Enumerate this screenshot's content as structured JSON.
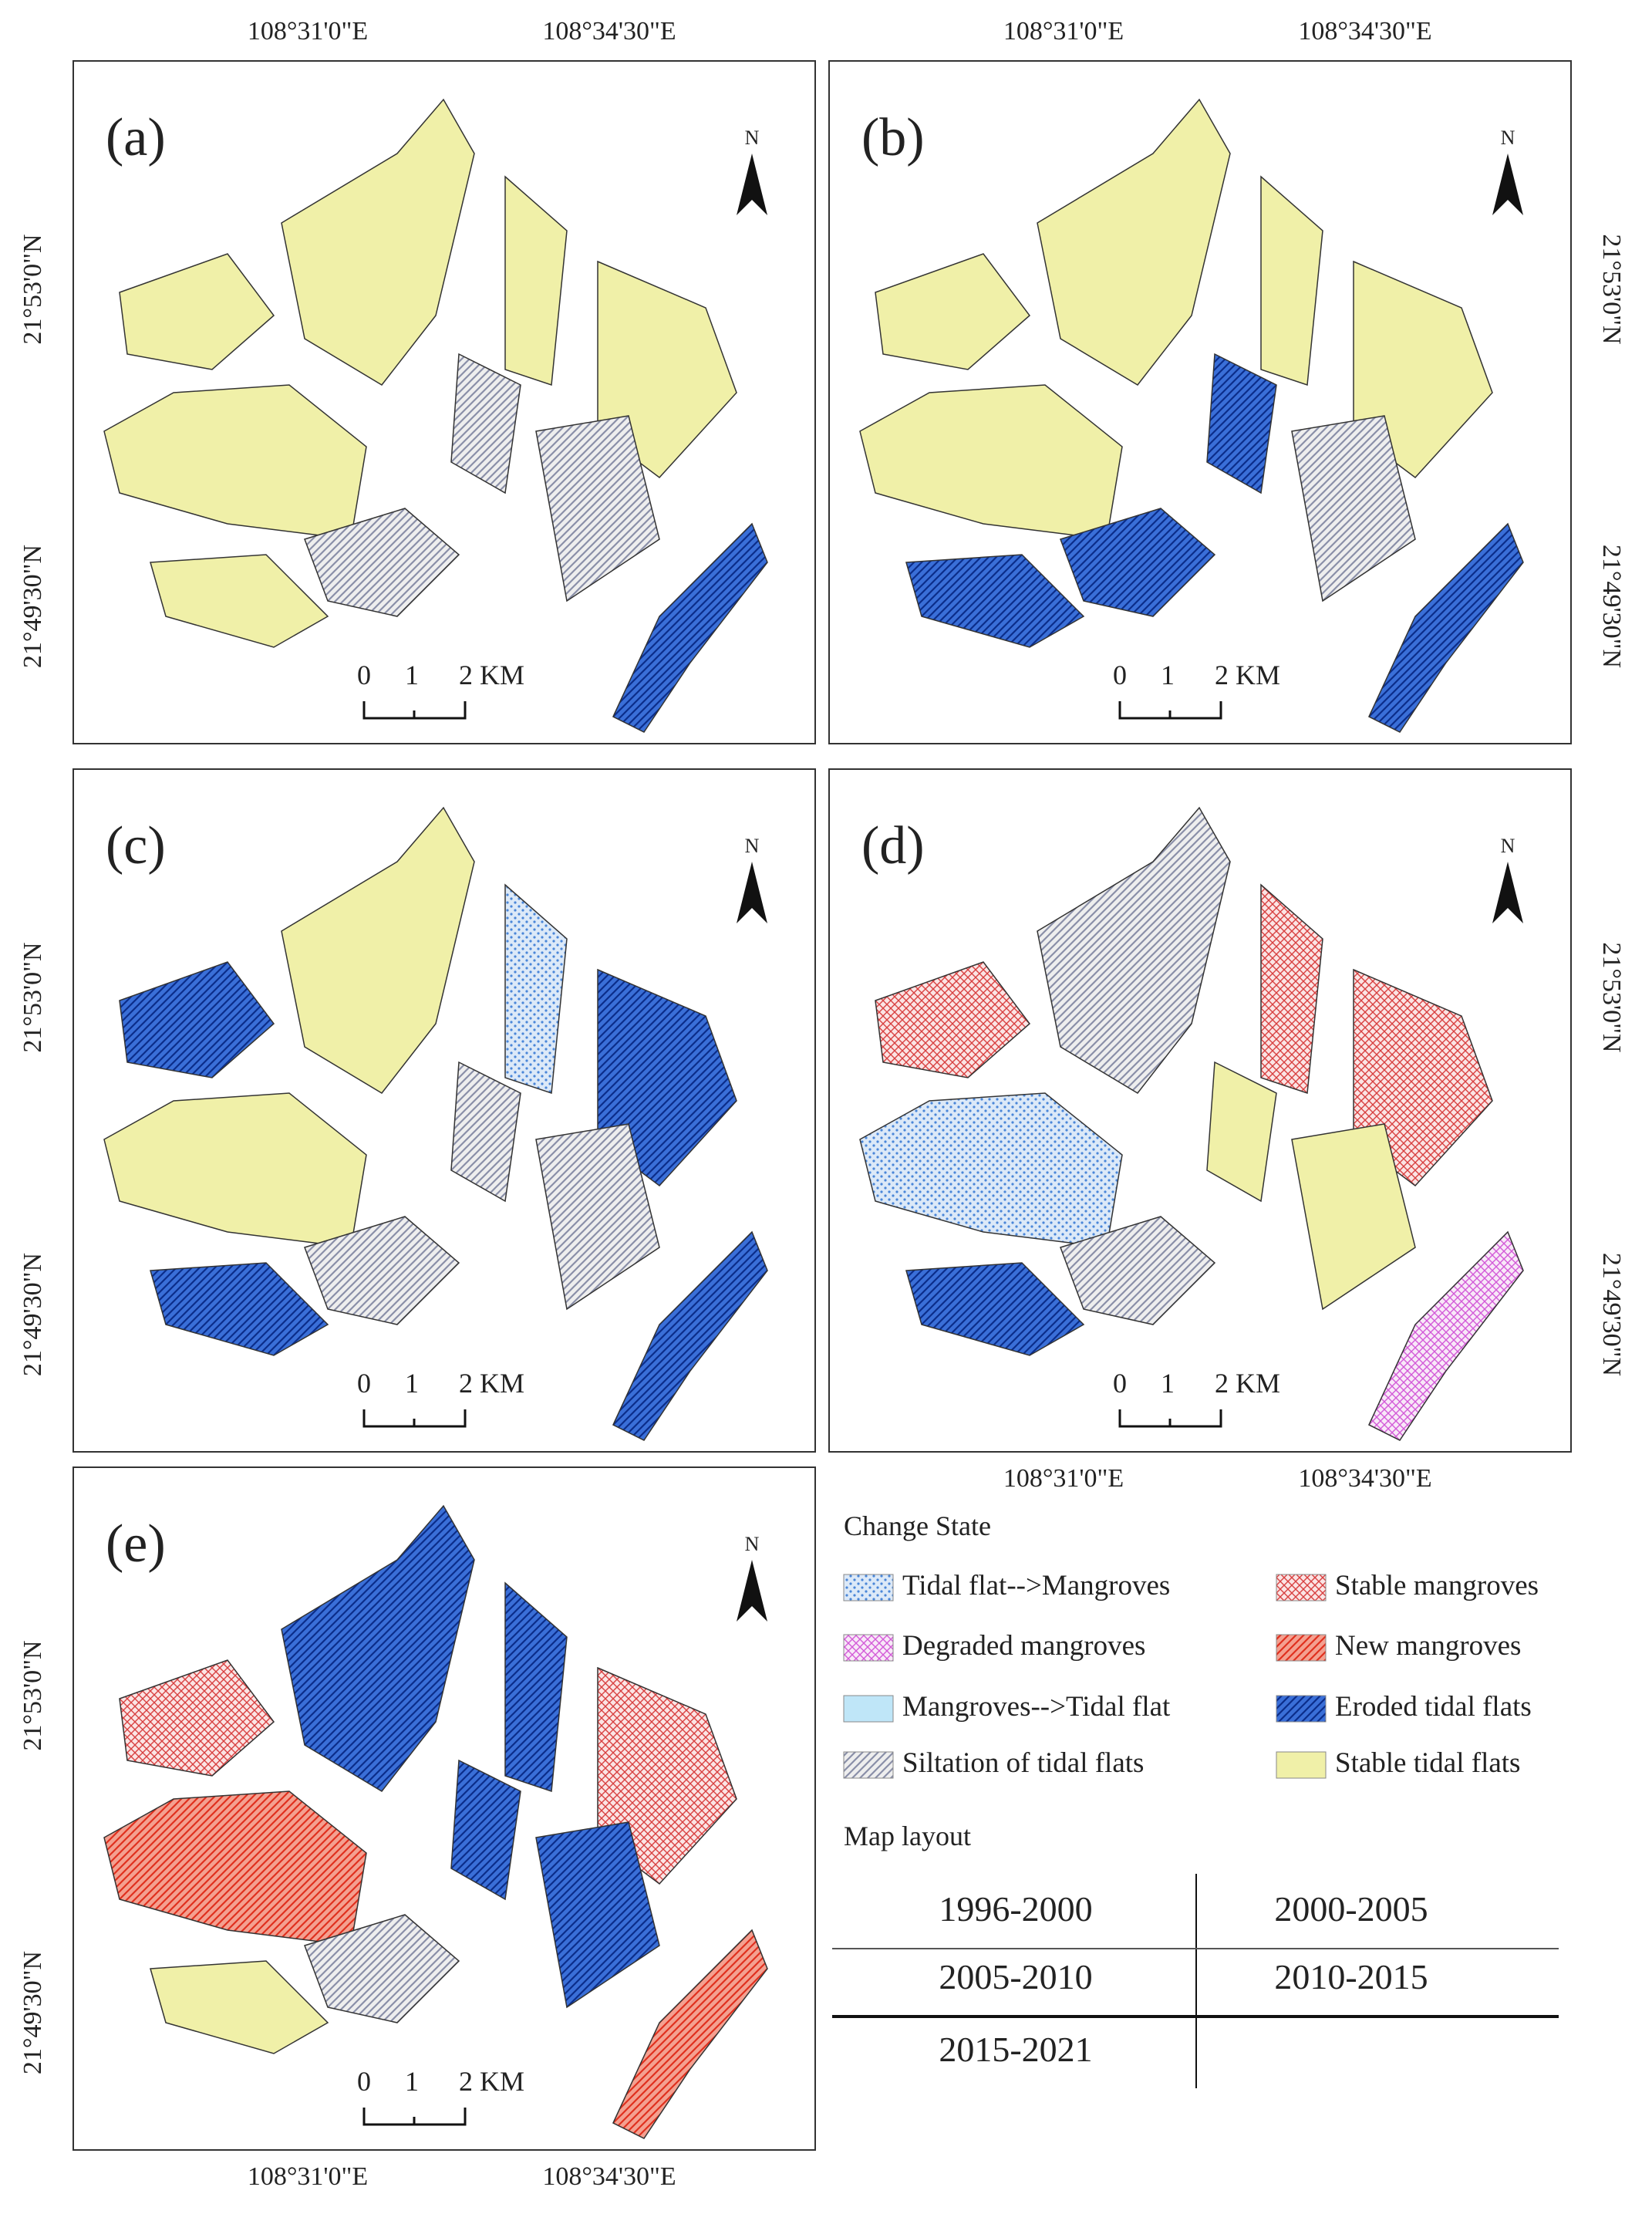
{
  "panels": [
    {
      "label": "(a)",
      "north": "N",
      "x_labels": [
        "108°31'0\"E",
        "108°34'30\"E"
      ],
      "y_labels": [
        "21°53'0\"N",
        "21°49'30\"N"
      ],
      "scale_labels": [
        "0",
        "1",
        "2 KM"
      ]
    },
    {
      "label": "(b)",
      "north": "N",
      "x_labels": [
        "108°31'0\"E",
        "108°34'30\"E"
      ],
      "y_labels": [
        "21°53'0\"N",
        "21°49'30\"N"
      ],
      "scale_labels": [
        "0",
        "1",
        "2 KM"
      ]
    },
    {
      "label": "(c)",
      "north": "N",
      "y_labels": [
        "21°53'0\"N",
        "21°49'30\"N"
      ],
      "scale_labels": [
        "0",
        "1",
        "2 KM"
      ]
    },
    {
      "label": "(d)",
      "north": "N",
      "x_labels": [
        "108°31'0\"E",
        "108°34'30\"E"
      ],
      "y_labels": [
        "21°53'0\"N",
        "21°49'30\"N"
      ],
      "scale_labels": [
        "0",
        "1",
        "2 KM"
      ]
    },
    {
      "label": "(e)",
      "north": "N",
      "x_labels": [
        "108°31'0\"E",
        "108°34'30\"E"
      ],
      "y_labels": [
        "21°53'0\"N",
        "21°49'30\"N"
      ],
      "scale_labels": [
        "0",
        "1",
        "2 KM"
      ]
    }
  ],
  "legend": {
    "title": "Change State",
    "items": [
      {
        "label": "Tidal flat-->Mangroves",
        "color": "#4a86d8"
      },
      {
        "label": "Degraded mangroves",
        "color": "#d35ad8"
      },
      {
        "label": "Mangroves-->Tidal flat",
        "color": "#bfe6f8"
      },
      {
        "label": "Siltation of tidal flats",
        "color": "#8a8fa8"
      },
      {
        "label": "Stable mangroves",
        "color": "#d84040"
      },
      {
        "label": "New mangroves",
        "color": "#e0301e"
      },
      {
        "label": "Eroded tidal flats",
        "color": "#1f4fbf"
      },
      {
        "label": "Stable tidal flats",
        "color": "#f0f0a8"
      }
    ]
  },
  "layout": {
    "title": "Map layout",
    "rows": [
      [
        "1996-2000",
        "2000-2005"
      ],
      [
        "2005-2010",
        "2010-2015"
      ],
      [
        "2015-2021"
      ]
    ]
  }
}
